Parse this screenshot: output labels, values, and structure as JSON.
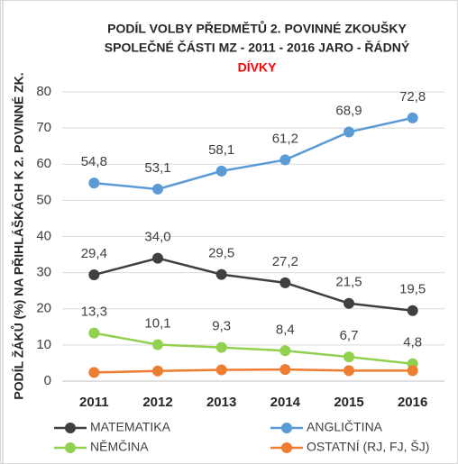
{
  "chart_data": {
    "type": "line",
    "title": [
      "PODÍL VOLBY PŘEDMĚTŮ 2. POVINNÉ ZKOUŠKY",
      "SPOLEČNÉ ČÁSTI MZ - 2011 - 2016  JARO - ŘÁDNÝ"
    ],
    "subtitle": "DÍVKY",
    "y_label": "PODÍL ŽÁKŮ (%) NA PŘIHLÁŠKÁCH K 2. POVINNÉ ZK.",
    "categories": [
      "2011",
      "2012",
      "2013",
      "2014",
      "2015",
      "2016"
    ],
    "series": [
      {
        "name": "MATEMATIKA",
        "color": "#404040",
        "values": [
          29.4,
          34.0,
          29.5,
          27.2,
          21.5,
          19.5
        ],
        "value_labels": [
          "29,4",
          "34,0",
          "29,5",
          "27,2",
          "21,5",
          "19,5"
        ]
      },
      {
        "name": "ANGLIČTINA",
        "color": "#5b9bd5",
        "values": [
          54.8,
          53.1,
          58.1,
          61.2,
          68.9,
          72.8
        ],
        "value_labels": [
          "54,8",
          "53,1",
          "58,1",
          "61,2",
          "68,9",
          "72,8"
        ]
      },
      {
        "name": "NĚMČINA",
        "color": "#92d050",
        "values": [
          13.3,
          10.1,
          9.3,
          8.4,
          6.7,
          4.8
        ],
        "value_labels": [
          "13,3",
          "10,1",
          "9,3",
          "8,4",
          "6,7",
          "4,8"
        ]
      },
      {
        "name": "OSTATNÍ (RJ, FJ, ŠJ)",
        "color": "#ed7d31",
        "values": [
          2.4,
          2.8,
          3.1,
          3.2,
          2.9,
          2.9
        ]
      }
    ],
    "ylim": [
      0,
      80
    ],
    "yticks": [
      0,
      10,
      20,
      30,
      40,
      50,
      60,
      70,
      80
    ],
    "grid": true
  }
}
